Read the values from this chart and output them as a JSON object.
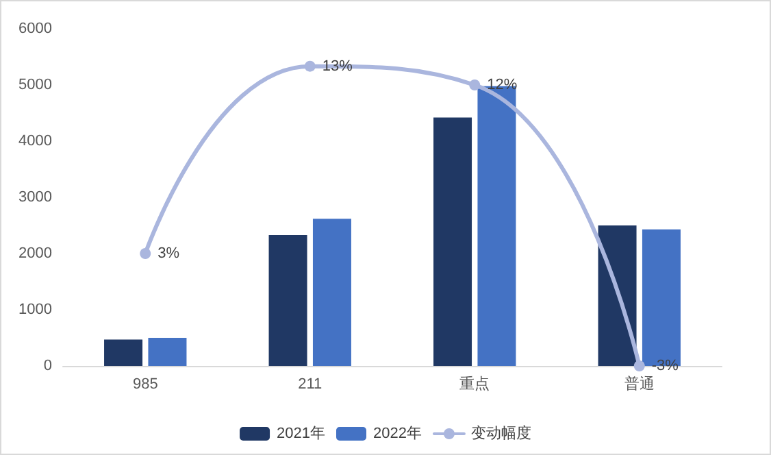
{
  "chart_data": {
    "type": "bar",
    "categories": [
      "985",
      "211",
      "重点",
      "普通"
    ],
    "series": [
      {
        "name": "2021年",
        "color": "#203864",
        "values": [
          470,
          2330,
          4420,
          2500
        ]
      },
      {
        "name": "2022年",
        "color": "#4472c4",
        "values": [
          500,
          2620,
          4980,
          2430
        ]
      },
      {
        "name": "变动幅度",
        "type": "line",
        "axis": "y2",
        "color": "#aab6de",
        "values": [
          3,
          13,
          12,
          -3
        ],
        "value_labels": [
          "3%",
          "13%",
          "12%",
          "-3%"
        ]
      }
    ],
    "ylim": [
      0,
      6000
    ],
    "yticks": [
      0,
      1000,
      2000,
      3000,
      4000,
      5000,
      6000
    ],
    "grid": false,
    "legend": "bottom",
    "marker": "circle",
    "line_style": "solid"
  }
}
